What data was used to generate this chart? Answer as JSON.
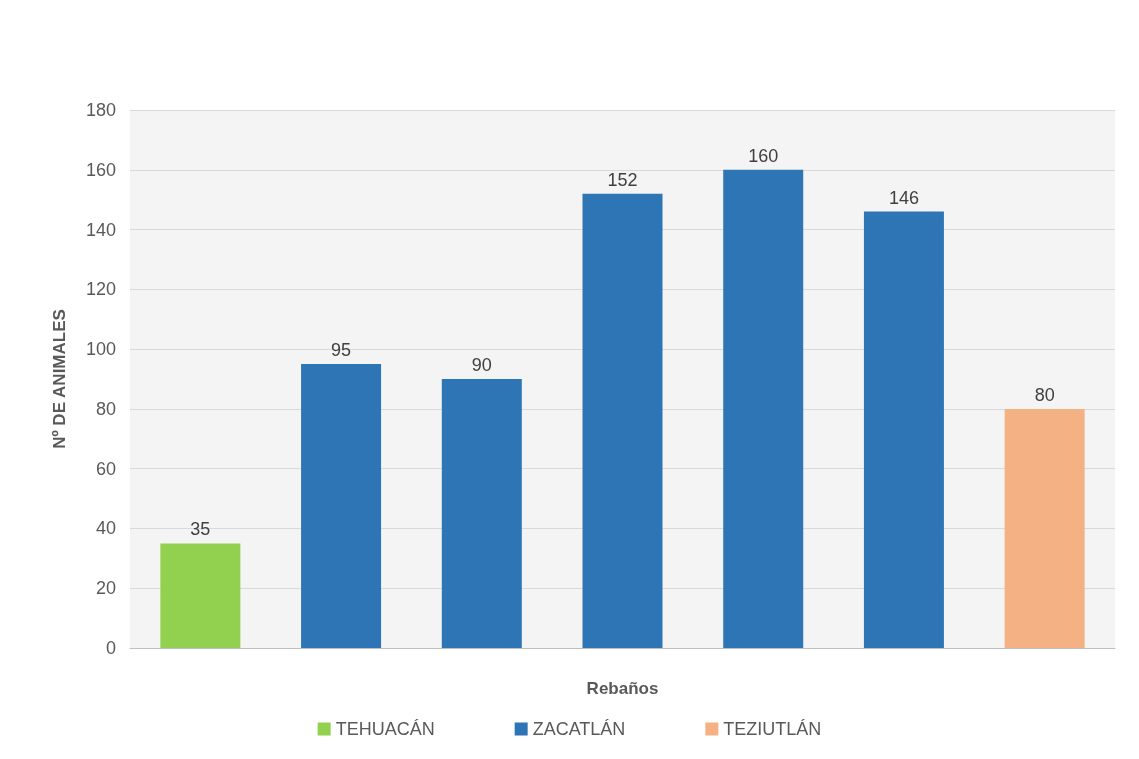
{
  "chart_data": {
    "type": "bar",
    "xlabel": "Rebaños",
    "ylabel": "Nº DE ANIMALES",
    "categories": [
      null,
      null,
      null,
      null,
      null,
      null,
      null
    ],
    "series": [
      {
        "name": "TEHUACÁN",
        "color": "#92d050",
        "values": [
          35,
          null,
          null,
          null,
          null,
          null,
          null
        ]
      },
      {
        "name": "ZACATLÁN",
        "color": "#2e75b6",
        "values": [
          null,
          95,
          90,
          152,
          160,
          146,
          null
        ]
      },
      {
        "name": "TEZIUTLÁN",
        "color": "#f4b183",
        "values": [
          null,
          null,
          null,
          null,
          null,
          null,
          80
        ]
      }
    ],
    "ylim": [
      0,
      180
    ],
    "yticks": [
      0,
      20,
      40,
      60,
      80,
      100,
      120,
      140,
      160,
      180
    ],
    "grid": "y",
    "legend": "bottom",
    "data_labels": true
  }
}
